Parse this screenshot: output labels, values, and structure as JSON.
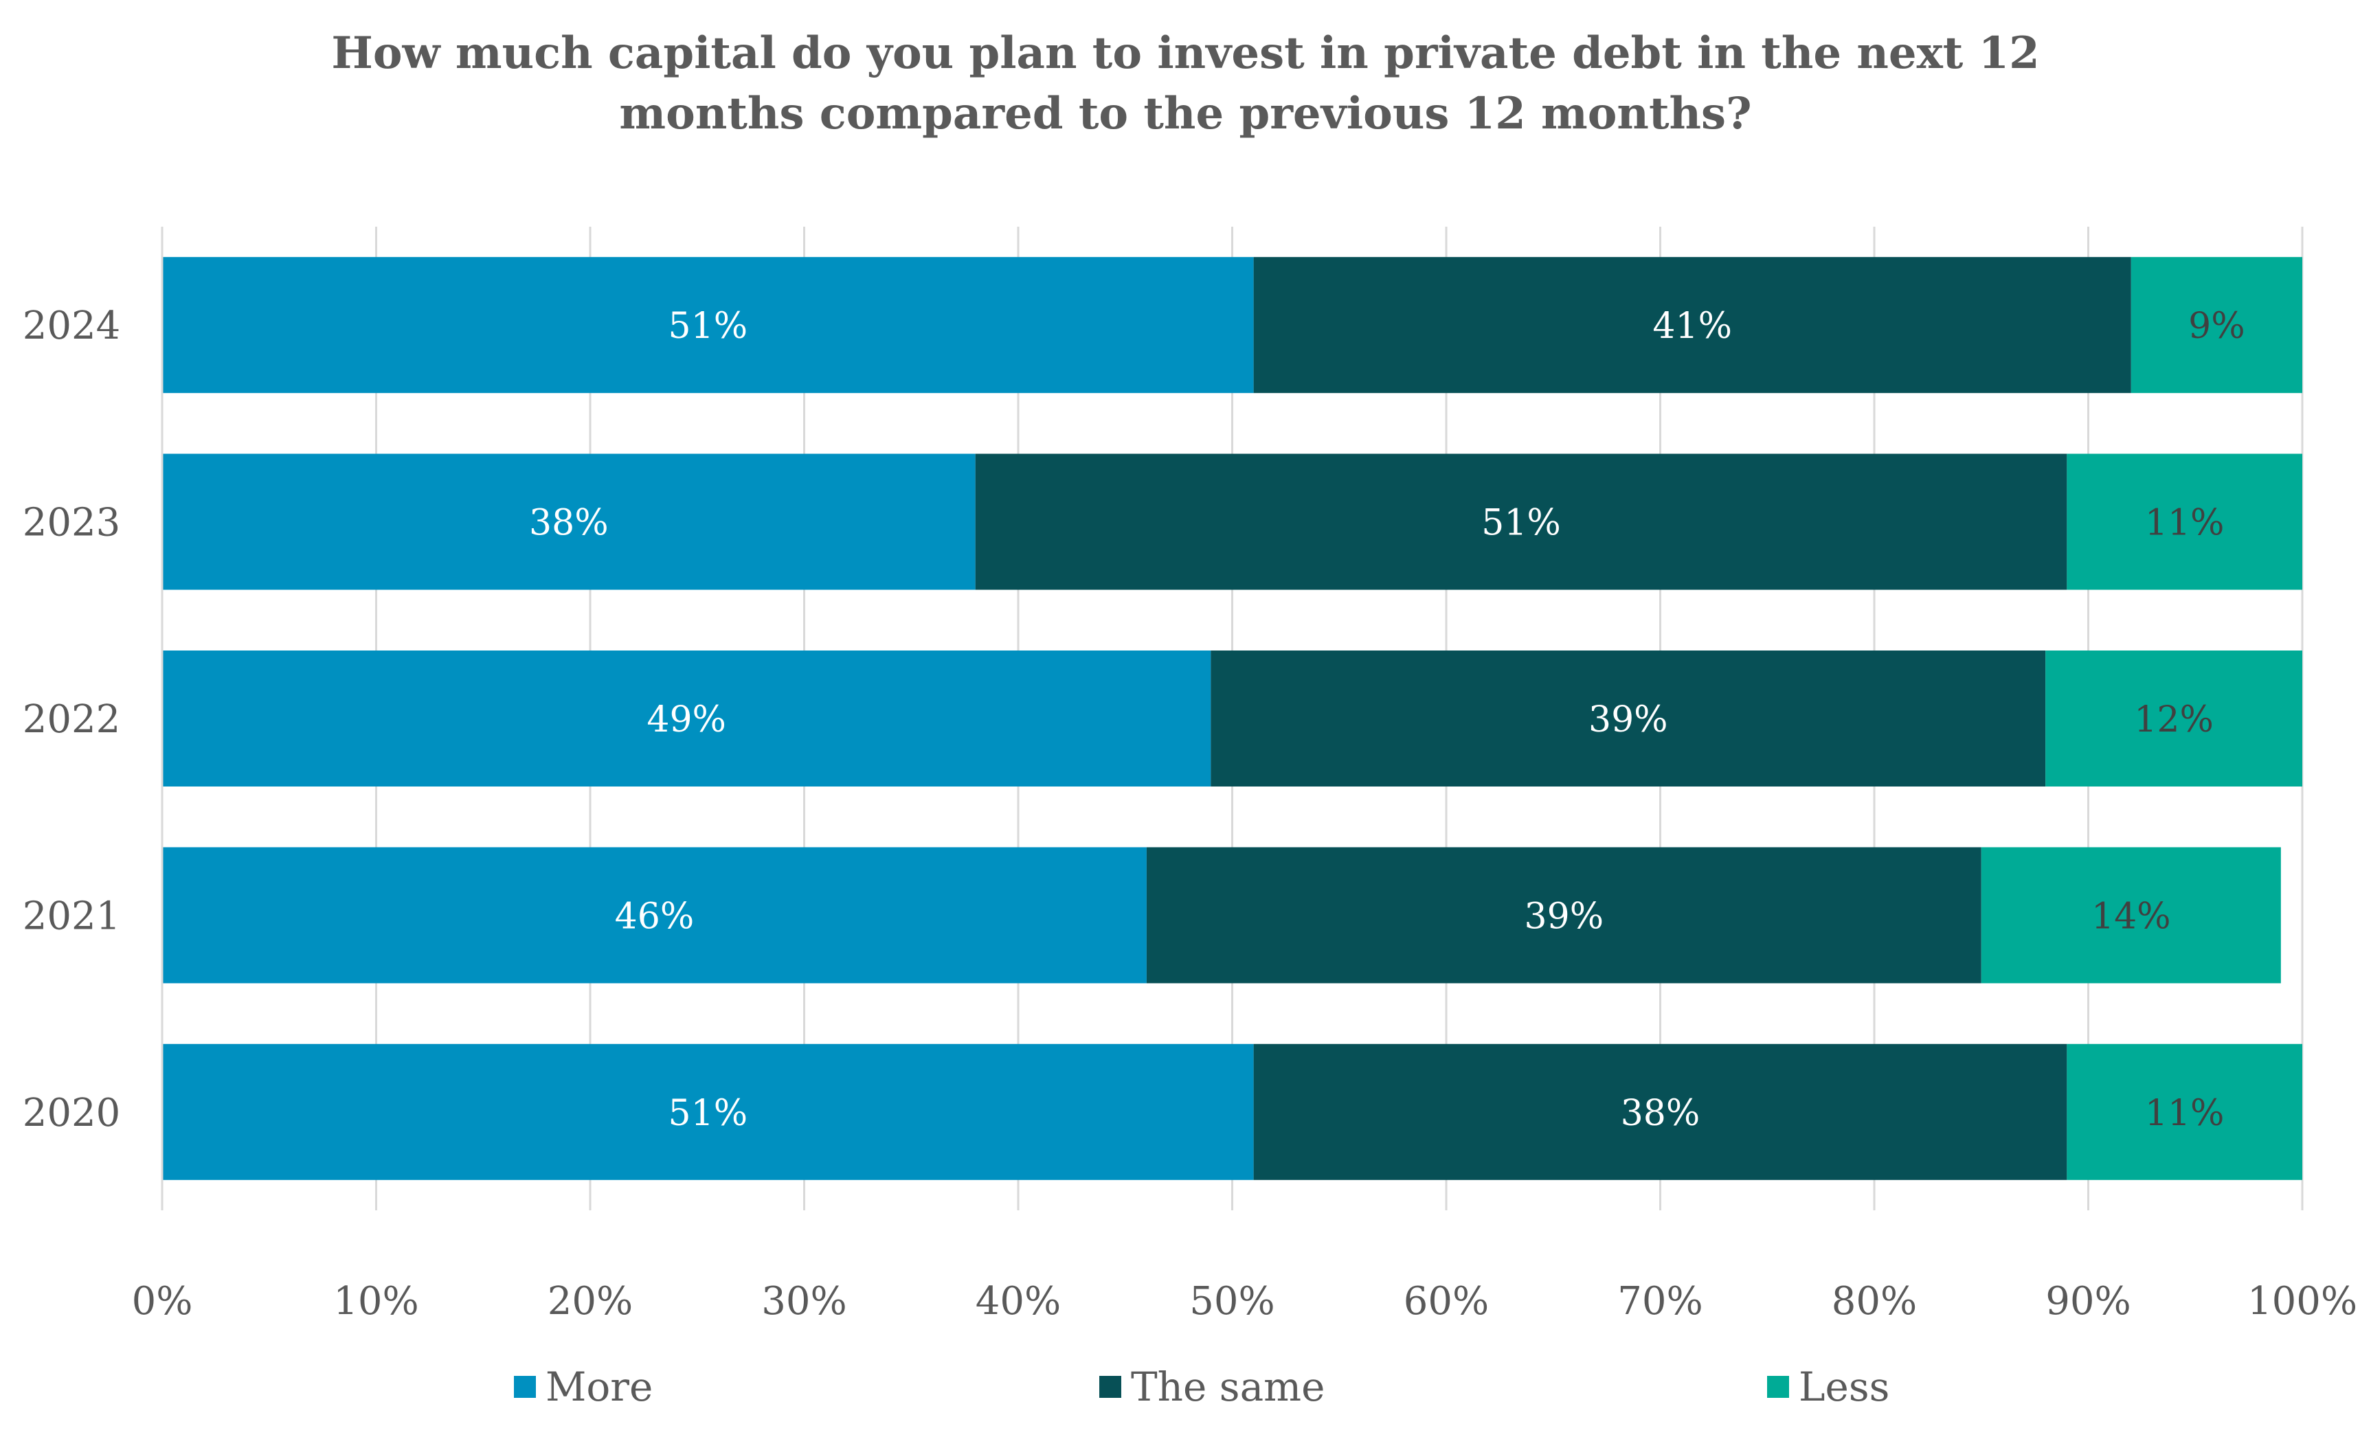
{
  "colors": {
    "more": "#0090c0",
    "same": "#075056",
    "less": "#00ab96",
    "grid": "#d9d9d9",
    "text": "#595959"
  },
  "chart_data": {
    "type": "bar",
    "orientation": "horizontal",
    "stacked": "percent",
    "title": "How much capital do you plan to invest in private debt in the next 12 months compared to the previous 12 months?",
    "title_lines": [
      "How much capital do you plan to invest in private debt in the next 12",
      "months compared to the previous 12 months?"
    ],
    "categories": [
      "2024",
      "2023",
      "2022",
      "2021",
      "2020"
    ],
    "series": [
      {
        "name": "More",
        "values": [
          51,
          38,
          49,
          46,
          51
        ],
        "labels": [
          "51%",
          "38%",
          "49%",
          "46%",
          "51%"
        ],
        "color": "#0090c0",
        "label_color": "#ffffff"
      },
      {
        "name": "The same",
        "values": [
          41,
          51,
          39,
          39,
          38
        ],
        "labels": [
          "41%",
          "51%",
          "39%",
          "39%",
          "38%"
        ],
        "color": "#075056",
        "label_color": "#ffffff"
      },
      {
        "name": "Less",
        "values": [
          9,
          11,
          12,
          14,
          11
        ],
        "labels": [
          "9%",
          "11%",
          "12%",
          "14%",
          "11%"
        ],
        "color": "#00ab96",
        "label_color": "#404040"
      }
    ],
    "xlim": [
      0,
      100
    ],
    "x_ticks": [
      "0%",
      "10%",
      "20%",
      "30%",
      "40%",
      "50%",
      "60%",
      "70%",
      "80%",
      "90%",
      "100%"
    ],
    "grid": true,
    "legend_position": "bottom",
    "xlabel": "",
    "ylabel": ""
  }
}
